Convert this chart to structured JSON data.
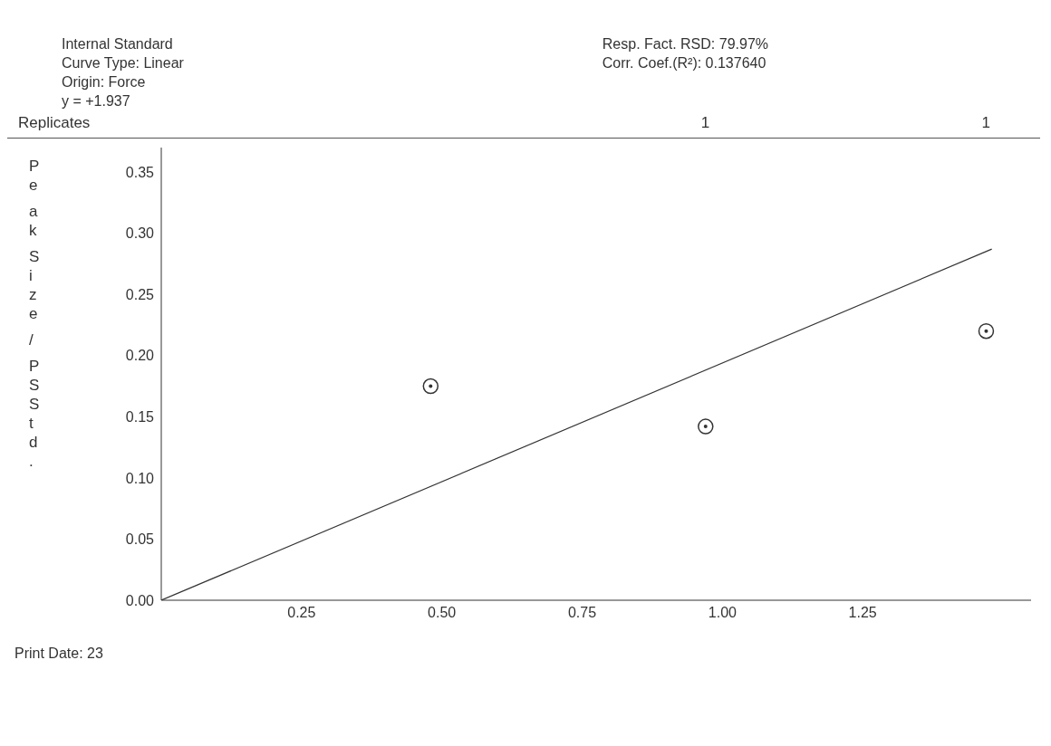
{
  "chart_data": {
    "type": "scatter",
    "subtitle": "Internal Standard\nCurve Type: Linear\nOrigin: Force\ny = +1.937",
    "ylabel": "Peak Size / PS Std.",
    "annotations": [
      "Resp. Fact. RSD: 79.97%",
      "Corr. Coef.(R²): 0.137640",
      "Replicates",
      "1",
      "1",
      "Print Date: 23"
    ],
    "series": [
      {
        "color": "#333333",
        "marker": "circle",
        "x": [
          0.48,
          0.97,
          1.47
        ],
        "values": [
          0.175,
          0.142,
          0.22
        ]
      },
      {
        "type": "line",
        "color": "#333333",
        "x": [
          0,
          1.48
        ],
        "values": [
          0,
          0.287
        ]
      }
    ],
    "xlim": [
      0,
      1.55
    ],
    "xticks": [
      {
        "value": 0.25,
        "label": "0.25"
      },
      {
        "value": 0.5,
        "label": "0.50"
      },
      {
        "value": 0.75,
        "label": "0.75"
      },
      {
        "value": 1,
        "label": "1.00"
      },
      {
        "value": 1.25,
        "label": "1.25"
      }
    ],
    "ylim": [
      0,
      0.37
    ],
    "yticks": [
      {
        "value": 0,
        "label": "0.00"
      },
      {
        "value": 0.05,
        "label": "0.05"
      },
      {
        "value": 0.1,
        "label": "0.10"
      },
      {
        "value": 0.15,
        "label": "0.15"
      },
      {
        "value": 0.2,
        "label": "0.20"
      },
      {
        "value": 0.25,
        "label": "0.25"
      },
      {
        "value": 0.3,
        "label": "0.30"
      },
      {
        "value": 0.35,
        "label": "0.35"
      }
    ],
    "grid": false,
    "legend": false
  }
}
